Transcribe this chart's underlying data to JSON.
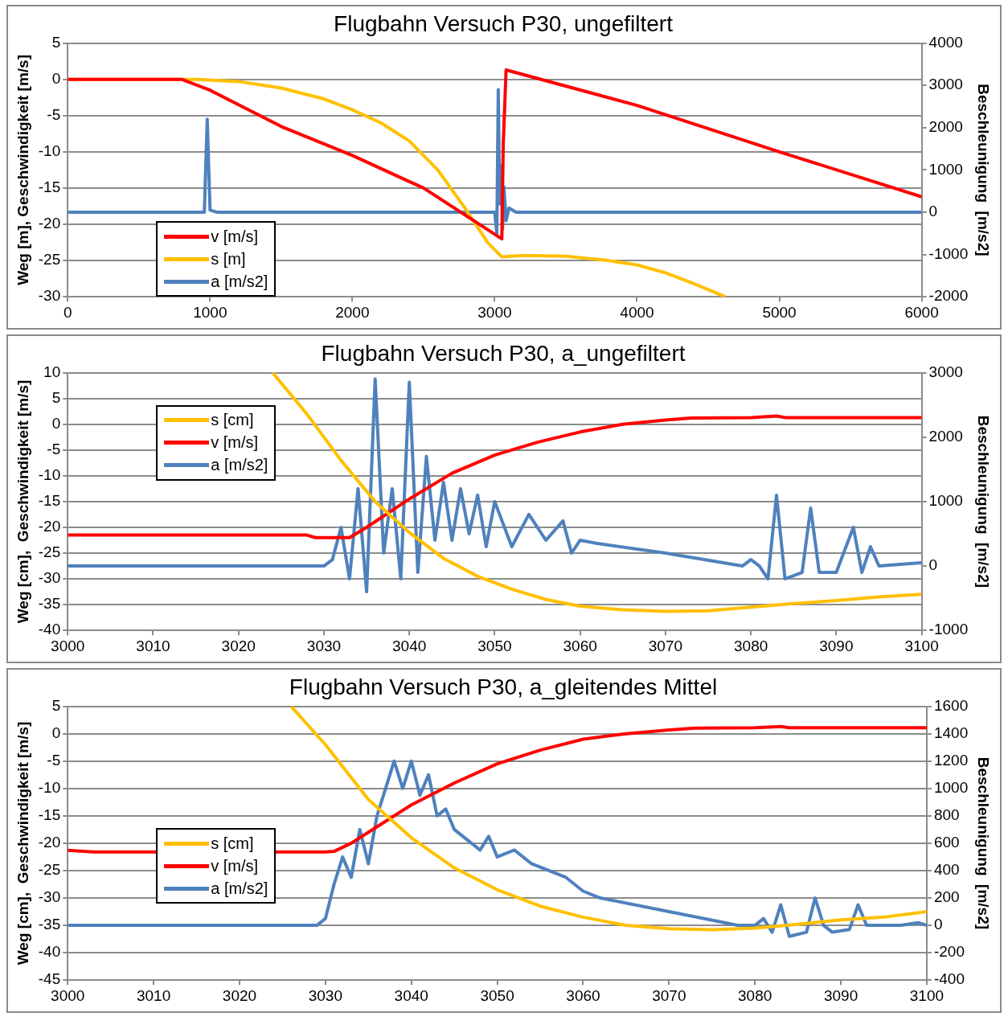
{
  "chart_data": [
    {
      "type": "line",
      "title": "Flugbahn Versuch P30, ungefiltert",
      "ylabel": "Weg [m], Geschwindigkeit [m/s]",
      "y2label": "Beschleunigung  [m/s2]",
      "xlim": [
        0,
        6000
      ],
      "xticks": [
        0,
        1000,
        2000,
        3000,
        4000,
        5000,
        6000
      ],
      "ylim": [
        -30,
        5
      ],
      "yticks": [
        -30,
        -25,
        -20,
        -15,
        -10,
        -5,
        0,
        5
      ],
      "y2lim": [
        -2000,
        4000
      ],
      "y2ticks": [
        -2000,
        -1000,
        0,
        1000,
        2000,
        3000,
        4000
      ],
      "grid": "y",
      "legend": "bottom left",
      "series": [
        {
          "name": "v [m/s]",
          "color": "#ff0000",
          "x": [
            0,
            800,
            1000,
            1500,
            2000,
            2500,
            3050,
            3060,
            3080,
            4000,
            5000,
            6000
          ],
          "values": [
            0,
            0,
            -1.5,
            -6.5,
            -10.5,
            -15,
            -22,
            -9,
            1.3,
            -3.6,
            -10,
            -16.2
          ]
        },
        {
          "name": "s [m]",
          "color": "#ffc000",
          "x": [
            0,
            900,
            1200,
            1500,
            1800,
            2000,
            2200,
            2400,
            2600,
            2800,
            2950,
            3050,
            3200,
            3500,
            3800,
            4000,
            4200,
            4400,
            4620
          ],
          "values": [
            0,
            0,
            -0.3,
            -1.2,
            -2.7,
            -4.2,
            -6,
            -8.5,
            -12.5,
            -18,
            -22.5,
            -24.5,
            -24.3,
            -24.4,
            -25,
            -25.6,
            -26.7,
            -28.2,
            -30
          ]
        },
        {
          "name": "a [m/s2]",
          "color": "#4f81bd",
          "axis": "y2",
          "x": [
            0,
            960,
            980,
            1000,
            1050,
            3000,
            3015,
            3025,
            3035,
            3045,
            3055,
            3065,
            3080,
            3100,
            3150,
            6000
          ],
          "values": [
            0,
            0,
            2200,
            50,
            0,
            0,
            -500,
            2900,
            200,
            1100,
            -400,
            600,
            -200,
            100,
            0,
            0
          ]
        }
      ]
    },
    {
      "type": "line",
      "title": "Flugbahn Versuch P30, a_ungefiltert",
      "ylabel": "Weg [cm],  Geschwindigkeit [m/s]",
      "y2label": "Beschleunigung  [m/s2]",
      "xlim": [
        3000,
        3100
      ],
      "xticks": [
        3000,
        3010,
        3020,
        3030,
        3040,
        3050,
        3060,
        3070,
        3080,
        3090,
        3100
      ],
      "ylim": [
        -40,
        10
      ],
      "yticks": [
        -40,
        -35,
        -30,
        -25,
        -20,
        -15,
        -10,
        -5,
        0,
        5,
        10
      ],
      "y2lim": [
        -1000,
        3000
      ],
      "y2ticks": [
        -1000,
        0,
        1000,
        2000,
        3000
      ],
      "grid": "y",
      "legend": "top left",
      "series": [
        {
          "name": "s [cm]",
          "color": "#ffc000",
          "x": [
            3024,
            3028,
            3032,
            3036,
            3040,
            3044,
            3048,
            3052,
            3056,
            3060,
            3065,
            3070,
            3075,
            3080,
            3085,
            3090,
            3095,
            3100
          ],
          "values": [
            10,
            2,
            -7,
            -15,
            -21,
            -26,
            -29.5,
            -32,
            -34,
            -35.3,
            -36,
            -36.3,
            -36.2,
            -35.5,
            -34.8,
            -34.2,
            -33.5,
            -33
          ]
        },
        {
          "name": "v [m/s]",
          "color": "#ff0000",
          "x": [
            3000,
            3028,
            3029,
            3033,
            3035,
            3040,
            3045,
            3050,
            3055,
            3060,
            3065,
            3070,
            3073,
            3080,
            3083,
            3084,
            3100
          ],
          "values": [
            -21.5,
            -21.5,
            -22,
            -22,
            -20,
            -14.5,
            -9.5,
            -6,
            -3.5,
            -1.5,
            0,
            0.8,
            1.2,
            1.3,
            1.6,
            1.3,
            1.3
          ]
        },
        {
          "name": "a [m/s2]",
          "color": "#4f81bd",
          "axis": "y2",
          "x": [
            3000,
            3030,
            3031,
            3032,
            3033,
            3034,
            3035,
            3036,
            3037,
            3038,
            3039,
            3040,
            3041,
            3042,
            3043,
            3044,
            3045,
            3046,
            3047,
            3048,
            3049,
            3050,
            3052,
            3054,
            3056,
            3058,
            3059,
            3060,
            3062,
            3070,
            3079,
            3080,
            3081,
            3082,
            3083,
            3084,
            3086,
            3087,
            3088,
            3090,
            3092,
            3093,
            3094,
            3095,
            3100
          ],
          "values": [
            0,
            0,
            100,
            600,
            -200,
            1200,
            -400,
            2900,
            200,
            1200,
            -200,
            2850,
            -100,
            1700,
            400,
            1300,
            400,
            1200,
            500,
            1100,
            300,
            1000,
            300,
            800,
            400,
            700,
            200,
            400,
            350,
            200,
            0,
            100,
            0,
            -200,
            1100,
            -200,
            -100,
            900,
            -100,
            -100,
            600,
            -100,
            300,
            0,
            50
          ]
        }
      ]
    },
    {
      "type": "line",
      "title": "Flugbahn Versuch P30, a_gleitendes Mittel",
      "ylabel": "Weg [cm],  Geschwindigkeit [m/s]",
      "y2label": "Beschleunigung  [m/s2]",
      "xlim": [
        3000,
        3100
      ],
      "xticks": [
        3000,
        3010,
        3020,
        3030,
        3040,
        3050,
        3060,
        3070,
        3080,
        3090,
        3100
      ],
      "ylim": [
        -45,
        5
      ],
      "yticks": [
        -45,
        -40,
        -35,
        -30,
        -25,
        -20,
        -15,
        -10,
        -5,
        0,
        5
      ],
      "y2lim": [
        -400,
        1600
      ],
      "y2ticks": [
        -400,
        -200,
        0,
        200,
        400,
        600,
        800,
        1000,
        1200,
        1400,
        1600
      ],
      "grid": "y",
      "legend": "bottom left",
      "series": [
        {
          "name": "s [cm]",
          "color": "#ffc000",
          "x": [
            3026,
            3030,
            3035,
            3040,
            3045,
            3050,
            3055,
            3060,
            3065,
            3070,
            3075,
            3080,
            3085,
            3090,
            3095,
            3100
          ],
          "values": [
            5,
            -2,
            -12,
            -19,
            -24.5,
            -28.5,
            -31.5,
            -33.5,
            -35,
            -35.6,
            -35.8,
            -35.5,
            -34.8,
            -34,
            -33.5,
            -32.5
          ]
        },
        {
          "name": "v [m/s]",
          "color": "#ff0000",
          "x": [
            3000,
            3003,
            3030,
            3031,
            3033,
            3036,
            3040,
            3045,
            3050,
            3055,
            3060,
            3065,
            3070,
            3073,
            3080,
            3083,
            3084,
            3100
          ],
          "values": [
            -21.3,
            -21.6,
            -21.6,
            -21.5,
            -20,
            -17,
            -13,
            -9,
            -5.5,
            -3,
            -1,
            0,
            0.7,
            1,
            1.1,
            1.3,
            1.1,
            1.1
          ]
        },
        {
          "name": "a [m/s2]",
          "color": "#4f81bd",
          "axis": "y2",
          "x": [
            3000,
            3029,
            3030,
            3031,
            3032,
            3033,
            3034,
            3035,
            3036,
            3037,
            3038,
            3039,
            3040,
            3041,
            3042,
            3043,
            3044,
            3045,
            3046,
            3047,
            3048,
            3049,
            3050,
            3052,
            3054,
            3056,
            3058,
            3060,
            3062,
            3070,
            3078,
            3080,
            3081,
            3082,
            3083,
            3084,
            3086,
            3087,
            3088,
            3089,
            3091,
            3092,
            3093,
            3095,
            3097,
            3099,
            3100
          ],
          "values": [
            0,
            0,
            50,
            300,
            500,
            350,
            700,
            450,
            800,
            1000,
            1200,
            1000,
            1200,
            950,
            1100,
            800,
            850,
            700,
            650,
            600,
            550,
            650,
            500,
            550,
            450,
            400,
            350,
            250,
            200,
            100,
            0,
            0,
            50,
            -50,
            150,
            -80,
            -50,
            200,
            0,
            -50,
            -30,
            150,
            0,
            0,
            0,
            20,
            0
          ]
        }
      ]
    }
  ]
}
